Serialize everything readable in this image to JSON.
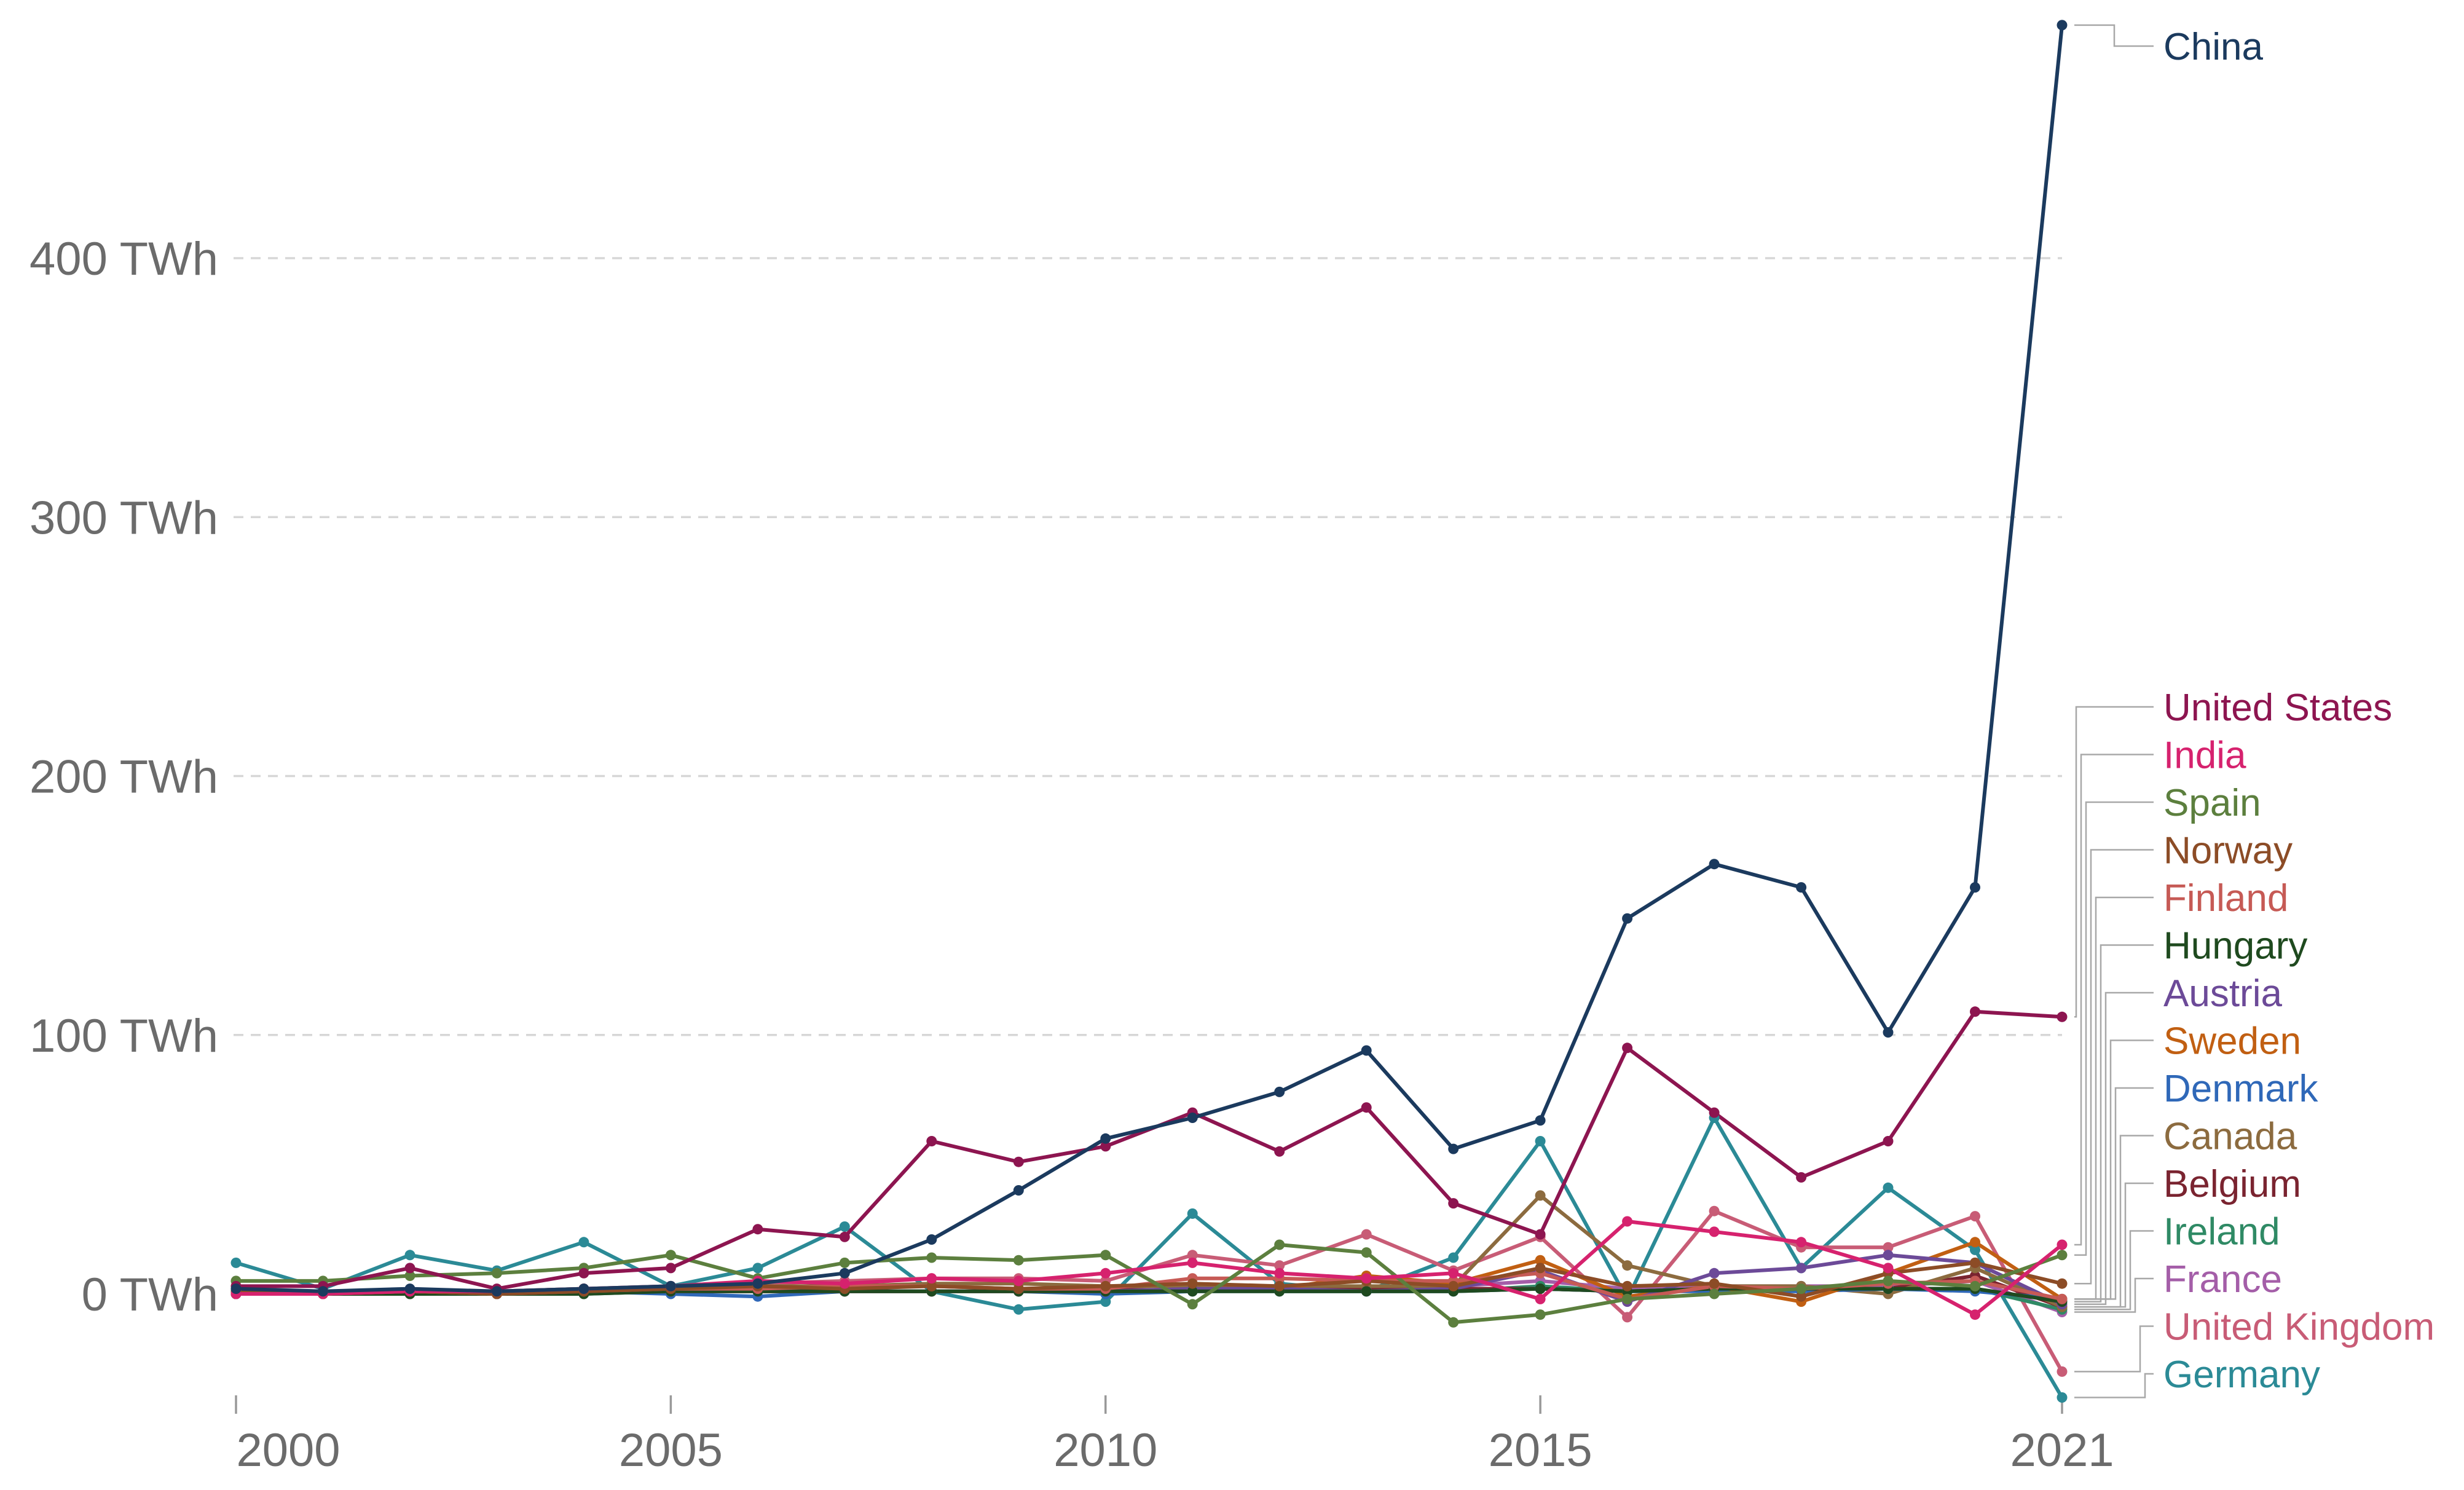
{
  "chart_data": {
    "type": "line",
    "title": "",
    "xlabel": "",
    "ylabel": "",
    "x": [
      2000,
      2001,
      2002,
      2003,
      2004,
      2005,
      2006,
      2007,
      2008,
      2009,
      2010,
      2011,
      2012,
      2013,
      2014,
      2015,
      2016,
      2017,
      2018,
      2019,
      2020,
      2021
    ],
    "x_ticks": [
      {
        "value": 2000,
        "label": "2000"
      },
      {
        "value": 2005,
        "label": "2005"
      },
      {
        "value": 2010,
        "label": "2010"
      },
      {
        "value": 2015,
        "label": "2015"
      },
      {
        "value": 2021,
        "label": "2021"
      }
    ],
    "y_ticks": [
      {
        "value": 0,
        "label": "0 TWh"
      },
      {
        "value": 100,
        "label": "100 TWh"
      },
      {
        "value": 200,
        "label": "200 TWh"
      },
      {
        "value": 300,
        "label": "300 TWh"
      },
      {
        "value": 400,
        "label": "400 TWh"
      }
    ],
    "ylim": [
      -45,
      490
    ],
    "xlim": [
      2000,
      2021
    ],
    "series": [
      {
        "name": "China",
        "color": "#1b3a5e",
        "values": [
          2,
          1,
          2,
          1,
          2,
          3,
          4,
          8,
          21,
          40,
          60,
          68,
          78,
          94,
          56,
          67,
          145,
          166,
          157,
          101,
          157,
          490
        ]
      },
      {
        "name": "United States",
        "color": "#8d1550",
        "values": [
          3,
          3,
          10,
          2,
          8,
          10,
          25,
          22,
          59,
          51,
          57,
          70,
          55,
          72,
          35,
          23,
          95,
          70,
          45,
          59,
          109,
          107
        ]
      },
      {
        "name": "India",
        "color": "#d6226e",
        "values": [
          0,
          0,
          1,
          1,
          2,
          3,
          5,
          4,
          6,
          5,
          8,
          12,
          8,
          6,
          8,
          -2,
          28,
          24,
          20,
          10,
          -8,
          19
        ]
      },
      {
        "name": "Spain",
        "color": "#5c7f3e",
        "values": [
          5,
          5,
          7,
          8,
          10,
          15,
          6,
          12,
          14,
          13,
          15,
          -4,
          19,
          16,
          -11,
          -8,
          -2,
          0,
          2,
          5,
          3,
          15
        ]
      },
      {
        "name": "Norway",
        "color": "#8c4c26",
        "values": [
          1,
          0,
          1,
          0,
          1,
          2,
          3,
          2,
          3,
          2,
          3,
          4,
          3,
          5,
          3,
          10,
          3,
          4,
          -1,
          8,
          12,
          4
        ]
      },
      {
        "name": "Finland",
        "color": "#c65a55",
        "values": [
          0,
          0,
          1,
          0,
          1,
          2,
          2,
          3,
          3,
          2,
          2,
          6,
          6,
          5,
          5,
          8,
          -2,
          3,
          2,
          4,
          5,
          -2
        ]
      },
      {
        "name": "Hungary",
        "color": "#1f4a1f",
        "values": [
          0,
          0,
          0,
          0,
          0,
          1,
          1,
          1,
          1,
          1,
          1,
          1,
          1,
          1,
          1,
          2,
          1,
          2,
          2,
          2,
          2,
          -3
        ]
      },
      {
        "name": "Austria",
        "color": "#6c4a98",
        "values": [
          0,
          0,
          0,
          0,
          1,
          1,
          1,
          1,
          1,
          1,
          1,
          2,
          2,
          1,
          2,
          9,
          -3,
          8,
          10,
          15,
          12,
          -4
        ]
      },
      {
        "name": "Sweden",
        "color": "#c15f12",
        "values": [
          0,
          0,
          0,
          0,
          1,
          1,
          1,
          1,
          1,
          1,
          1,
          2,
          2,
          7,
          4,
          13,
          -1,
          3,
          -3,
          8,
          20,
          -2
        ]
      },
      {
        "name": "Denmark",
        "color": "#2f68b8",
        "values": [
          0,
          0,
          1,
          0,
          1,
          0,
          -1,
          1,
          1,
          1,
          0,
          1,
          1,
          1,
          1,
          2,
          1,
          1,
          1,
          2,
          1,
          -2
        ]
      },
      {
        "name": "Canada",
        "color": "#8c6b3f",
        "values": [
          1,
          1,
          1,
          1,
          2,
          2,
          3,
          3,
          4,
          4,
          3,
          3,
          3,
          3,
          3,
          38,
          11,
          3,
          3,
          0,
          10,
          -5
        ]
      },
      {
        "name": "Belgium",
        "color": "#7a2430",
        "values": [
          0,
          0,
          1,
          0,
          1,
          1,
          1,
          1,
          1,
          1,
          2,
          1,
          2,
          2,
          2,
          2,
          1,
          2,
          2,
          2,
          7,
          -5
        ]
      },
      {
        "name": "Ireland",
        "color": "#2f8a65",
        "values": [
          0,
          0,
          0,
          0,
          0,
          1,
          1,
          1,
          1,
          1,
          1,
          2,
          1,
          1,
          1,
          3,
          1,
          2,
          2,
          2,
          2,
          -6
        ]
      },
      {
        "name": "France",
        "color": "#a45ea8",
        "values": [
          0,
          0,
          1,
          0,
          1,
          1,
          1,
          1,
          1,
          1,
          1,
          2,
          3,
          2,
          3,
          5,
          2,
          3,
          3,
          3,
          5,
          -7
        ]
      },
      {
        "name": "United Kingdom",
        "color": "#c85c76",
        "values": [
          0,
          0,
          1,
          0,
          2,
          3,
          4,
          5,
          6,
          6,
          5,
          15,
          11,
          23,
          9,
          22,
          -9,
          32,
          18,
          18,
          30,
          -30
        ]
      },
      {
        "name": "Germany",
        "color": "#2b8a96",
        "values": [
          12,
          2,
          15,
          9,
          20,
          3,
          10,
          26,
          1,
          -6,
          -3,
          31,
          4,
          1,
          14,
          59,
          -2,
          68,
          10,
          41,
          17,
          -40
        ]
      }
    ]
  }
}
